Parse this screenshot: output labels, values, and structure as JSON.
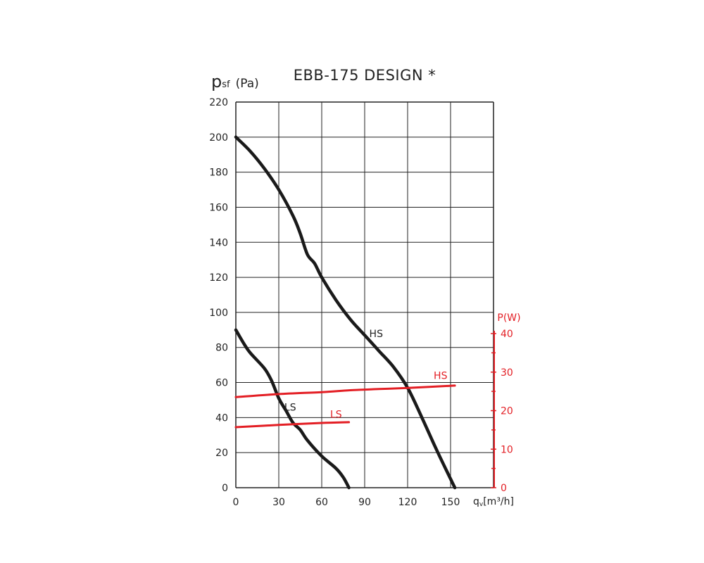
{
  "chart_data": {
    "type": "line",
    "title": "EBB-175 DESIGN *",
    "y_axis": {
      "label_main": "p",
      "label_sub": "sf",
      "label_unit": "(Pa)",
      "min": 0,
      "max": 220,
      "ticks": [
        0,
        20,
        40,
        60,
        80,
        100,
        120,
        140,
        160,
        180,
        200,
        220
      ],
      "grid": true
    },
    "x_axis": {
      "label_main": "q",
      "label_sub": "v",
      "label_unit": "[m³/h]",
      "min": 0,
      "max": 180,
      "ticks": [
        0,
        30,
        60,
        90,
        120,
        150
      ],
      "grid": true
    },
    "y2_axis": {
      "label": "P(W)",
      "min": 0,
      "max": 40,
      "ticks": [
        0,
        10,
        20,
        30,
        40
      ],
      "minor_ticks": [
        5,
        15,
        25,
        35
      ],
      "color": "#e31e24"
    },
    "series": [
      {
        "name": "HS",
        "axis": "pressure",
        "color": "#1a1a1a",
        "x": [
          0,
          10,
          20,
          30,
          40,
          45,
          50,
          55,
          60,
          70,
          80,
          90,
          100,
          110,
          120,
          130,
          140,
          150,
          153
        ],
        "y": [
          200,
          192,
          182,
          170,
          155,
          145,
          133,
          128,
          120,
          107,
          96,
          87,
          78,
          69,
          57,
          40,
          22,
          5,
          0
        ]
      },
      {
        "name": "LS",
        "axis": "pressure",
        "color": "#1a1a1a",
        "x": [
          0,
          5,
          10,
          20,
          25,
          30,
          35,
          40,
          45,
          50,
          60,
          70,
          75,
          79
        ],
        "y": [
          90,
          83,
          77,
          68,
          61,
          51,
          44,
          37,
          33,
          27,
          18,
          11,
          6,
          0
        ]
      },
      {
        "name": "HS",
        "axis": "power",
        "color": "#e31e24",
        "x": [
          0,
          30,
          60,
          80,
          100,
          120,
          153
        ],
        "y": [
          23.5,
          24.3,
          24.8,
          25.3,
          25.6,
          25.9,
          26.5
        ]
      },
      {
        "name": "LS",
        "axis": "power",
        "color": "#e31e24",
        "x": [
          0,
          30,
          60,
          79
        ],
        "y": [
          15.7,
          16.3,
          16.8,
          17.0
        ]
      }
    ],
    "labels": [
      {
        "text": "HS",
        "color": "#1a1a1a",
        "x": 98,
        "y": 86
      },
      {
        "text": "LS",
        "color": "#1a1a1a",
        "x": 38,
        "y": 44
      },
      {
        "text": "HS",
        "color": "#e31e24",
        "x": 143,
        "y": 62
      },
      {
        "text": "LS",
        "color": "#e31e24",
        "x": 70,
        "y": 40
      }
    ]
  }
}
